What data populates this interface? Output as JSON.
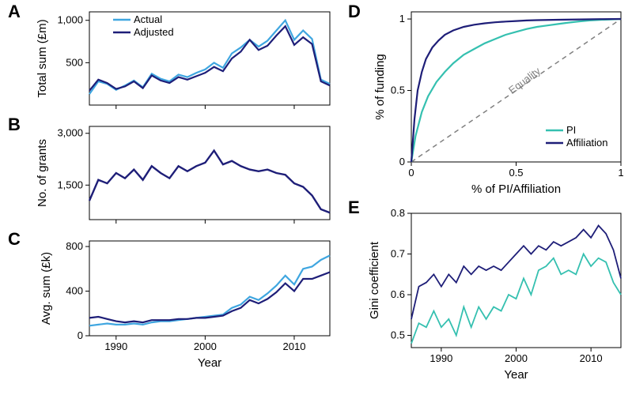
{
  "colors": {
    "actual": "#3fa6e0",
    "adjusted": "#1e1e78",
    "pi": "#35c0b0",
    "affiliation": "#1e1e78",
    "equality": "#808080",
    "axis": "#000000",
    "bg": "#ffffff"
  },
  "panelA": {
    "label": "A",
    "ylabel": "Total sum (£m)",
    "yticks": [
      500,
      1000
    ],
    "xticks": [
      1990,
      2000,
      2010
    ],
    "xrange": [
      1987,
      2014
    ],
    "yrange": [
      0,
      1100
    ],
    "line_width": 2.2,
    "legend": [
      {
        "label": "Actual",
        "color": "#3fa6e0"
      },
      {
        "label": "Adjusted",
        "color": "#1e1e78"
      }
    ],
    "series": {
      "actual": [
        [
          1987,
          130
        ],
        [
          1988,
          280
        ],
        [
          1989,
          250
        ],
        [
          1990,
          180
        ],
        [
          1991,
          230
        ],
        [
          1992,
          290
        ],
        [
          1993,
          210
        ],
        [
          1994,
          370
        ],
        [
          1995,
          310
        ],
        [
          1996,
          280
        ],
        [
          1997,
          360
        ],
        [
          1998,
          330
        ],
        [
          1999,
          380
        ],
        [
          2000,
          420
        ],
        [
          2001,
          500
        ],
        [
          2002,
          440
        ],
        [
          2003,
          610
        ],
        [
          2004,
          680
        ],
        [
          2005,
          770
        ],
        [
          2006,
          690
        ],
        [
          2007,
          760
        ],
        [
          2008,
          880
        ],
        [
          2009,
          1000
        ],
        [
          2010,
          770
        ],
        [
          2011,
          880
        ],
        [
          2012,
          780
        ],
        [
          2013,
          300
        ],
        [
          2014,
          250
        ]
      ],
      "adjusted": [
        [
          1987,
          170
        ],
        [
          1988,
          300
        ],
        [
          1989,
          260
        ],
        [
          1990,
          190
        ],
        [
          1991,
          220
        ],
        [
          1992,
          280
        ],
        [
          1993,
          200
        ],
        [
          1994,
          350
        ],
        [
          1995,
          290
        ],
        [
          1996,
          260
        ],
        [
          1997,
          330
        ],
        [
          1998,
          300
        ],
        [
          1999,
          340
        ],
        [
          2000,
          380
        ],
        [
          2001,
          450
        ],
        [
          2002,
          400
        ],
        [
          2003,
          550
        ],
        [
          2004,
          630
        ],
        [
          2005,
          770
        ],
        [
          2006,
          650
        ],
        [
          2007,
          700
        ],
        [
          2008,
          820
        ],
        [
          2009,
          930
        ],
        [
          2010,
          710
        ],
        [
          2011,
          800
        ],
        [
          2012,
          720
        ],
        [
          2013,
          280
        ],
        [
          2014,
          230
        ]
      ]
    }
  },
  "panelB": {
    "label": "B",
    "ylabel": "No. of grants",
    "yticks": [
      1500,
      3000
    ],
    "xticks": [
      1990,
      2000,
      2010
    ],
    "xrange": [
      1987,
      2014
    ],
    "yrange": [
      500,
      3200
    ],
    "line_width": 2.4,
    "series": [
      [
        1987,
        1050
      ],
      [
        1988,
        1650
      ],
      [
        1989,
        1550
      ],
      [
        1990,
        1850
      ],
      [
        1991,
        1700
      ],
      [
        1992,
        1950
      ],
      [
        1993,
        1650
      ],
      [
        1994,
        2050
      ],
      [
        1995,
        1850
      ],
      [
        1996,
        1700
      ],
      [
        1997,
        2050
      ],
      [
        1998,
        1900
      ],
      [
        1999,
        2050
      ],
      [
        2000,
        2150
      ],
      [
        2001,
        2500
      ],
      [
        2002,
        2100
      ],
      [
        2003,
        2200
      ],
      [
        2004,
        2050
      ],
      [
        2005,
        1950
      ],
      [
        2006,
        1900
      ],
      [
        2007,
        1950
      ],
      [
        2008,
        1850
      ],
      [
        2009,
        1800
      ],
      [
        2010,
        1550
      ],
      [
        2011,
        1450
      ],
      [
        2012,
        1200
      ],
      [
        2013,
        800
      ],
      [
        2014,
        700
      ]
    ]
  },
  "panelC": {
    "label": "C",
    "ylabel": "Avg. sum (£k)",
    "xlabel": "Year",
    "yticks": [
      0,
      400,
      800
    ],
    "xticks": [
      1990,
      2000,
      2010
    ],
    "xrange": [
      1987,
      2014
    ],
    "yrange": [
      0,
      850
    ],
    "line_width": 2.2,
    "series": {
      "actual": [
        [
          1987,
          90
        ],
        [
          1988,
          100
        ],
        [
          1989,
          110
        ],
        [
          1990,
          100
        ],
        [
          1991,
          100
        ],
        [
          1992,
          110
        ],
        [
          1993,
          100
        ],
        [
          1994,
          120
        ],
        [
          1995,
          130
        ],
        [
          1996,
          130
        ],
        [
          1997,
          140
        ],
        [
          1998,
          150
        ],
        [
          1999,
          160
        ],
        [
          2000,
          170
        ],
        [
          2001,
          180
        ],
        [
          2002,
          190
        ],
        [
          2003,
          250
        ],
        [
          2004,
          280
        ],
        [
          2005,
          350
        ],
        [
          2006,
          320
        ],
        [
          2007,
          380
        ],
        [
          2008,
          450
        ],
        [
          2009,
          540
        ],
        [
          2010,
          460
        ],
        [
          2011,
          600
        ],
        [
          2012,
          620
        ],
        [
          2013,
          680
        ],
        [
          2014,
          720
        ]
      ],
      "adjusted": [
        [
          1987,
          160
        ],
        [
          1988,
          170
        ],
        [
          1989,
          150
        ],
        [
          1990,
          130
        ],
        [
          1991,
          120
        ],
        [
          1992,
          130
        ],
        [
          1993,
          120
        ],
        [
          1994,
          140
        ],
        [
          1995,
          140
        ],
        [
          1996,
          140
        ],
        [
          1997,
          150
        ],
        [
          1998,
          150
        ],
        [
          1999,
          160
        ],
        [
          2000,
          160
        ],
        [
          2001,
          170
        ],
        [
          2002,
          180
        ],
        [
          2003,
          220
        ],
        [
          2004,
          250
        ],
        [
          2005,
          320
        ],
        [
          2006,
          290
        ],
        [
          2007,
          330
        ],
        [
          2008,
          390
        ],
        [
          2009,
          470
        ],
        [
          2010,
          400
        ],
        [
          2011,
          510
        ],
        [
          2012,
          510
        ],
        [
          2013,
          540
        ],
        [
          2014,
          570
        ]
      ]
    }
  },
  "panelD": {
    "label": "D",
    "ylabel": "% of funding",
    "xlabel": "% of PI/Affiliation",
    "yticks": [
      0,
      0.5,
      1
    ],
    "xticks": [
      0,
      0.5,
      1
    ],
    "xrange": [
      0,
      1
    ],
    "yrange": [
      0,
      1.05
    ],
    "line_width": 2.2,
    "equality_label": "Equality",
    "legend": [
      {
        "label": "PI",
        "color": "#35c0b0"
      },
      {
        "label": "Affiliation",
        "color": "#1e1e78"
      }
    ],
    "series": {
      "pi": [
        [
          0,
          0
        ],
        [
          0.02,
          0.18
        ],
        [
          0.05,
          0.35
        ],
        [
          0.08,
          0.46
        ],
        [
          0.12,
          0.56
        ],
        [
          0.16,
          0.63
        ],
        [
          0.2,
          0.69
        ],
        [
          0.25,
          0.75
        ],
        [
          0.3,
          0.79
        ],
        [
          0.35,
          0.83
        ],
        [
          0.4,
          0.86
        ],
        [
          0.45,
          0.89
        ],
        [
          0.5,
          0.91
        ],
        [
          0.55,
          0.93
        ],
        [
          0.6,
          0.945
        ],
        [
          0.65,
          0.955
        ],
        [
          0.7,
          0.965
        ],
        [
          0.75,
          0.975
        ],
        [
          0.8,
          0.983
        ],
        [
          0.85,
          0.99
        ],
        [
          0.9,
          0.994
        ],
        [
          0.95,
          0.997
        ],
        [
          1,
          1
        ]
      ],
      "affiliation": [
        [
          0,
          0
        ],
        [
          0.015,
          0.3
        ],
        [
          0.03,
          0.5
        ],
        [
          0.05,
          0.63
        ],
        [
          0.07,
          0.72
        ],
        [
          0.1,
          0.8
        ],
        [
          0.13,
          0.85
        ],
        [
          0.16,
          0.89
        ],
        [
          0.2,
          0.92
        ],
        [
          0.25,
          0.945
        ],
        [
          0.3,
          0.96
        ],
        [
          0.35,
          0.97
        ],
        [
          0.4,
          0.977
        ],
        [
          0.45,
          0.982
        ],
        [
          0.5,
          0.986
        ],
        [
          0.55,
          0.99
        ],
        [
          0.6,
          0.992
        ],
        [
          0.7,
          0.995
        ],
        [
          0.8,
          0.997
        ],
        [
          0.9,
          0.999
        ],
        [
          1,
          1
        ]
      ]
    }
  },
  "panelE": {
    "label": "E",
    "ylabel": "Gini coefficient",
    "xlabel": "Year",
    "yticks": [
      0.5,
      0.6,
      0.7,
      0.8
    ],
    "xticks": [
      1990,
      2000,
      2010
    ],
    "xrange": [
      1986,
      2014
    ],
    "yrange": [
      0.47,
      0.8
    ],
    "line_width": 1.8,
    "series": {
      "pi": [
        [
          1986,
          0.48
        ],
        [
          1987,
          0.53
        ],
        [
          1988,
          0.52
        ],
        [
          1989,
          0.56
        ],
        [
          1990,
          0.52
        ],
        [
          1991,
          0.54
        ],
        [
          1992,
          0.5
        ],
        [
          1993,
          0.57
        ],
        [
          1994,
          0.52
        ],
        [
          1995,
          0.57
        ],
        [
          1996,
          0.54
        ],
        [
          1997,
          0.57
        ],
        [
          1998,
          0.56
        ],
        [
          1999,
          0.6
        ],
        [
          2000,
          0.59
        ],
        [
          2001,
          0.64
        ],
        [
          2002,
          0.6
        ],
        [
          2003,
          0.66
        ],
        [
          2004,
          0.67
        ],
        [
          2005,
          0.69
        ],
        [
          2006,
          0.65
        ],
        [
          2007,
          0.66
        ],
        [
          2008,
          0.65
        ],
        [
          2009,
          0.7
        ],
        [
          2010,
          0.67
        ],
        [
          2011,
          0.69
        ],
        [
          2012,
          0.68
        ],
        [
          2013,
          0.63
        ],
        [
          2014,
          0.6
        ]
      ],
      "affiliation": [
        [
          1986,
          0.54
        ],
        [
          1987,
          0.62
        ],
        [
          1988,
          0.63
        ],
        [
          1989,
          0.65
        ],
        [
          1990,
          0.62
        ],
        [
          1991,
          0.65
        ],
        [
          1992,
          0.63
        ],
        [
          1993,
          0.67
        ],
        [
          1994,
          0.65
        ],
        [
          1995,
          0.67
        ],
        [
          1996,
          0.66
        ],
        [
          1997,
          0.67
        ],
        [
          1998,
          0.66
        ],
        [
          1999,
          0.68
        ],
        [
          2000,
          0.7
        ],
        [
          2001,
          0.72
        ],
        [
          2002,
          0.7
        ],
        [
          2003,
          0.72
        ],
        [
          2004,
          0.71
        ],
        [
          2005,
          0.73
        ],
        [
          2006,
          0.72
        ],
        [
          2007,
          0.73
        ],
        [
          2008,
          0.74
        ],
        [
          2009,
          0.76
        ],
        [
          2010,
          0.74
        ],
        [
          2011,
          0.77
        ],
        [
          2012,
          0.75
        ],
        [
          2013,
          0.71
        ],
        [
          2014,
          0.64
        ]
      ]
    }
  }
}
